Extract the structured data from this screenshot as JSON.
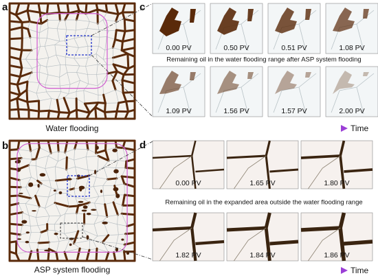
{
  "panels": {
    "a": {
      "label": "a",
      "caption": "Water flooding"
    },
    "b": {
      "label": "b",
      "caption": "ASP system flooding"
    },
    "c": {
      "label": "c",
      "frames": [
        "0.00 PV",
        "0.50 PV",
        "0.51 PV",
        "1.08 PV",
        "1.09 PV",
        "1.56 PV",
        "1.57 PV",
        "2.00 PV"
      ],
      "caption": "Remaining oil in the water flooding range after ASP system flooding",
      "axis": "Time"
    },
    "d": {
      "label": "d",
      "frames": [
        "0.00 PV",
        "1.65 PV",
        "1.80 PV",
        "1.82 PV",
        "1.84 PV",
        "1.86 PV"
      ],
      "caption": "Remaining oil in the expanded area outside the water flooding range",
      "axis": "Time"
    }
  }
}
